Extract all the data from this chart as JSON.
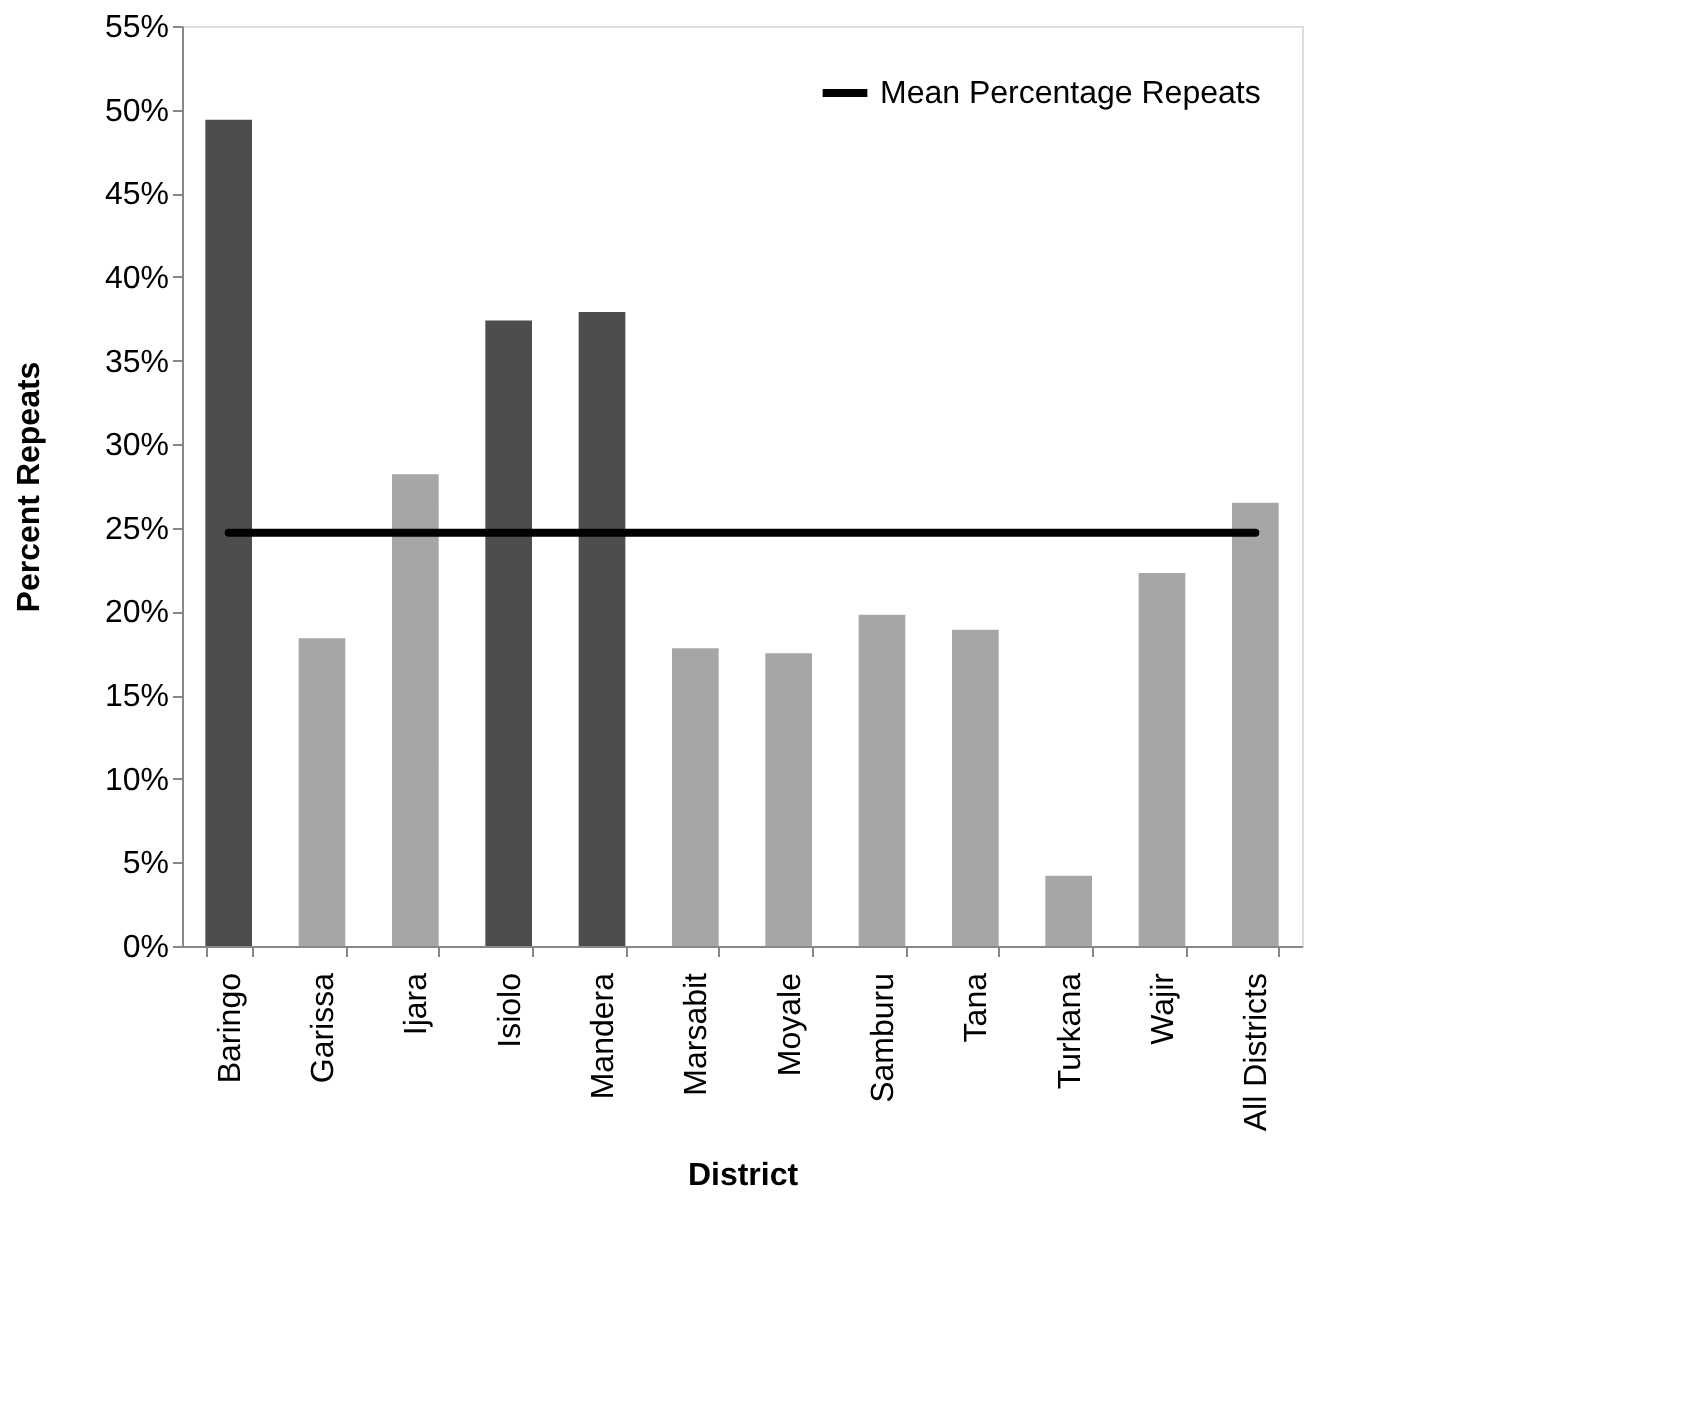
{
  "chart_data": {
    "type": "bar",
    "xlabel": "District",
    "ylabel": "Percent Repeats",
    "categories": [
      "Baringo",
      "Garissa",
      "Ijara",
      "Isiolo",
      "Mandera",
      "Marsabit",
      "Moyale",
      "Samburu",
      "Tana",
      "Turkana",
      "Wajir",
      "All Districts"
    ],
    "series": [
      {
        "values": [
          49.4,
          18.4,
          28.2,
          37.4,
          37.9,
          17.8,
          17.5,
          19.8,
          18.9,
          4.2,
          22.3,
          26.5
        ],
        "colors": [
          "#4d4d4d",
          "#a6a6a6",
          "#a6a6a6",
          "#4d4d4d",
          "#4d4d4d",
          "#a6a6a6",
          "#a6a6a6",
          "#a6a6a6",
          "#a6a6a6",
          "#a6a6a6",
          "#a6a6a6",
          "#a6a6a6"
        ]
      },
      {
        "type": "line",
        "name": "Mean Percentage Repeats",
        "color": "#000000",
        "values": [
          24.7,
          24.7,
          24.7,
          24.7,
          24.7,
          24.7,
          24.7,
          24.7,
          24.7,
          24.7,
          24.7,
          24.7
        ]
      }
    ],
    "ylim": [
      0,
      55
    ],
    "yticks": [
      {
        "value": 0,
        "label": "0%"
      },
      {
        "value": 5,
        "label": "5%"
      },
      {
        "value": 10,
        "label": "10%"
      },
      {
        "value": 15,
        "label": "15%"
      },
      {
        "value": 20,
        "label": "20%"
      },
      {
        "value": 25,
        "label": "25%"
      },
      {
        "value": 30,
        "label": "30%"
      },
      {
        "value": 35,
        "label": "35%"
      },
      {
        "value": 40,
        "label": "40%"
      },
      {
        "value": 45,
        "label": "45%"
      },
      {
        "value": 50,
        "label": "50%"
      },
      {
        "value": 55,
        "label": "55%"
      }
    ],
    "grid": false,
    "legend": "top right",
    "marker": "none",
    "line_style": "solid"
  }
}
